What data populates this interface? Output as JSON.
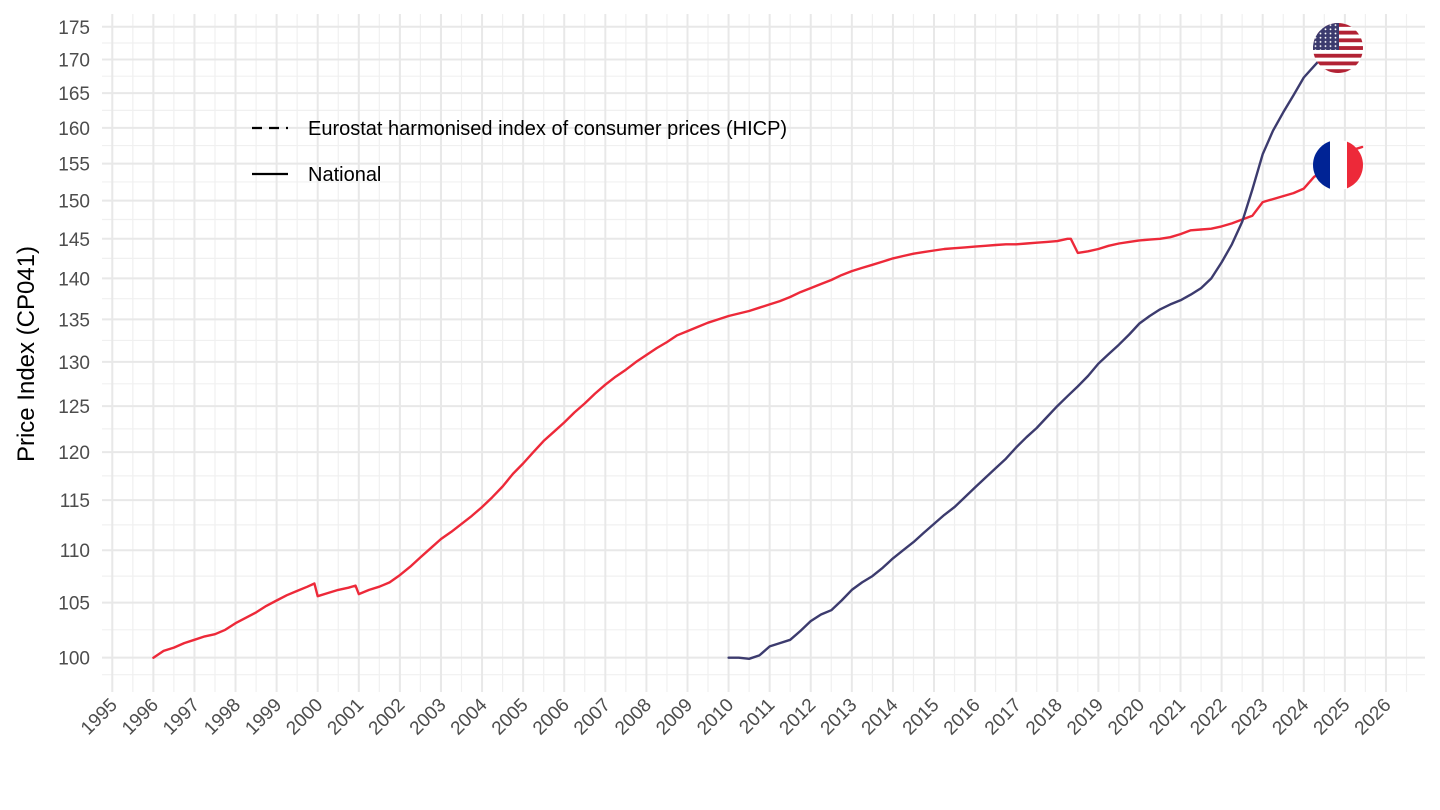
{
  "chart_data": {
    "type": "line",
    "title": "",
    "xlabel": "",
    "ylabel": "Price Index (CP041)",
    "xlim": [
      1994.75,
      2026.95
    ],
    "ylim": [
      97,
      177
    ],
    "y_scale": "log",
    "y_ticks": [
      100,
      105,
      110,
      115,
      120,
      125,
      130,
      135,
      140,
      145,
      150,
      155,
      160,
      165,
      170,
      175
    ],
    "y_tick_labels": [
      "100",
      "105",
      "110",
      "115",
      "120",
      "125",
      "130",
      "135",
      "140",
      "145",
      "150",
      "155",
      "160",
      "165",
      "170",
      "175"
    ],
    "x_ticks": [
      1995,
      1996,
      1997,
      1998,
      1999,
      2000,
      2001,
      2002,
      2003,
      2004,
      2005,
      2006,
      2007,
      2008,
      2009,
      2010,
      2011,
      2012,
      2013,
      2014,
      2015,
      2016,
      2017,
      2018,
      2019,
      2020,
      2021,
      2022,
      2023,
      2024,
      2025,
      2026
    ],
    "x_tick_labels": [
      "1995",
      "1996",
      "1997",
      "1998",
      "1999",
      "2000",
      "2001",
      "2002",
      "2003",
      "2004",
      "2005",
      "2006",
      "2007",
      "2008",
      "2009",
      "2010",
      "2011",
      "2012",
      "2013",
      "2014",
      "2015",
      "2016",
      "2017",
      "2018",
      "2019",
      "2020",
      "2021",
      "2022",
      "2023",
      "2024",
      "2025",
      "2026"
    ],
    "grid": true,
    "legend": {
      "position": "top-left",
      "entries": [
        {
          "label": "Eurostat harmonised index of consumer prices (HICP)",
          "linestyle": "dashed"
        },
        {
          "label": "National",
          "linestyle": "solid"
        }
      ]
    },
    "series": [
      {
        "name": "France",
        "color": "#ed2939",
        "linestyle": "solid",
        "flag": "fr-flag",
        "x": [
          1996.0,
          1996.25,
          1996.5,
          1996.75,
          1997.0,
          1997.25,
          1997.5,
          1997.75,
          1998.0,
          1998.25,
          1998.5,
          1998.75,
          1999.0,
          1999.25,
          1999.5,
          1999.75,
          1999.92,
          2000.0,
          2000.25,
          2000.5,
          2000.75,
          2000.92,
          2001.0,
          2001.25,
          2001.5,
          2001.75,
          2002.0,
          2002.25,
          2002.5,
          2002.75,
          2003.0,
          2003.25,
          2003.5,
          2003.75,
          2004.0,
          2004.25,
          2004.5,
          2004.75,
          2005.0,
          2005.25,
          2005.5,
          2005.75,
          2006.0,
          2006.25,
          2006.5,
          2006.75,
          2007.0,
          2007.25,
          2007.5,
          2007.75,
          2008.0,
          2008.25,
          2008.5,
          2008.75,
          2009.0,
          2009.25,
          2009.5,
          2009.75,
          2010.0,
          2010.25,
          2010.5,
          2010.75,
          2011.0,
          2011.25,
          2011.5,
          2011.75,
          2012.0,
          2012.25,
          2012.5,
          2012.75,
          2013.0,
          2013.25,
          2013.5,
          2013.75,
          2014.0,
          2014.25,
          2014.5,
          2014.75,
          2015.0,
          2015.25,
          2015.5,
          2015.75,
          2016.0,
          2016.25,
          2016.5,
          2016.75,
          2017.0,
          2017.25,
          2017.5,
          2017.75,
          2018.0,
          2018.25,
          2018.33,
          2018.5,
          2018.75,
          2019.0,
          2019.25,
          2019.5,
          2019.75,
          2020.0,
          2020.25,
          2020.5,
          2020.75,
          2021.0,
          2021.25,
          2021.5,
          2021.75,
          2022.0,
          2022.25,
          2022.5,
          2022.75,
          2023.0,
          2023.25,
          2023.5,
          2023.75,
          2024.0,
          2024.25,
          2024.5,
          2024.75,
          2025.0,
          2025.25,
          2025.42
        ],
        "values": [
          100.0,
          100.6,
          100.9,
          101.3,
          101.6,
          101.9,
          102.1,
          102.5,
          103.1,
          103.6,
          104.1,
          104.7,
          105.2,
          105.7,
          106.1,
          106.5,
          106.8,
          105.6,
          105.9,
          106.2,
          106.4,
          106.6,
          105.8,
          106.2,
          106.5,
          106.9,
          107.6,
          108.4,
          109.3,
          110.2,
          111.1,
          111.8,
          112.6,
          113.4,
          114.3,
          115.3,
          116.4,
          117.7,
          118.8,
          120.0,
          121.2,
          122.2,
          123.2,
          124.3,
          125.3,
          126.4,
          127.4,
          128.3,
          129.1,
          130.0,
          130.8,
          131.6,
          132.3,
          133.1,
          133.6,
          134.1,
          134.6,
          135.0,
          135.4,
          135.7,
          136.0,
          136.4,
          136.8,
          137.2,
          137.7,
          138.3,
          138.8,
          139.3,
          139.8,
          140.4,
          140.9,
          141.3,
          141.7,
          142.1,
          142.5,
          142.8,
          143.1,
          143.3,
          143.5,
          143.7,
          143.8,
          143.9,
          144.0,
          144.1,
          144.2,
          144.3,
          144.3,
          144.4,
          144.5,
          144.6,
          144.7,
          145.0,
          145.0,
          143.2,
          143.4,
          143.7,
          144.1,
          144.4,
          144.6,
          144.8,
          144.9,
          145.0,
          145.2,
          145.6,
          146.1,
          146.2,
          146.3,
          146.6,
          147.0,
          147.5,
          148.0,
          149.8,
          150.2,
          150.6,
          151.0,
          151.6,
          153.2,
          154.0,
          155.5,
          156.5,
          157.0,
          157.3
        ]
      },
      {
        "name": "United States",
        "color": "#3c3b6e",
        "linestyle": "solid",
        "flag": "us-flag",
        "x": [
          2010.0,
          2010.25,
          2010.5,
          2010.75,
          2011.0,
          2011.25,
          2011.5,
          2011.75,
          2012.0,
          2012.25,
          2012.5,
          2012.75,
          2013.0,
          2013.25,
          2013.5,
          2013.75,
          2014.0,
          2014.25,
          2014.5,
          2014.75,
          2015.0,
          2015.25,
          2015.5,
          2015.75,
          2016.0,
          2016.25,
          2016.5,
          2016.75,
          2017.0,
          2017.25,
          2017.5,
          2017.75,
          2018.0,
          2018.25,
          2018.5,
          2018.75,
          2019.0,
          2019.25,
          2019.5,
          2019.75,
          2020.0,
          2020.25,
          2020.5,
          2020.75,
          2021.0,
          2021.25,
          2021.5,
          2021.75,
          2022.0,
          2022.25,
          2022.5,
          2022.75,
          2023.0,
          2023.25,
          2023.5,
          2023.75,
          2024.0,
          2024.25,
          2024.5,
          2024.75,
          2025.0,
          2025.25
        ],
        "values": [
          100.0,
          100.0,
          99.9,
          100.2,
          101.0,
          101.3,
          101.6,
          102.4,
          103.3,
          103.9,
          104.3,
          105.2,
          106.2,
          106.9,
          107.5,
          108.3,
          109.2,
          110.0,
          110.8,
          111.7,
          112.6,
          113.5,
          114.3,
          115.3,
          116.3,
          117.3,
          118.3,
          119.3,
          120.5,
          121.6,
          122.6,
          123.8,
          125.0,
          126.1,
          127.2,
          128.4,
          129.8,
          130.9,
          132.0,
          133.2,
          134.5,
          135.4,
          136.2,
          136.8,
          137.3,
          138.0,
          138.8,
          140.0,
          142.0,
          144.3,
          147.2,
          151.5,
          156.3,
          159.6,
          162.2,
          164.7,
          167.3,
          169.0,
          170.7,
          171.7,
          172.3,
          172.8
        ]
      }
    ]
  }
}
